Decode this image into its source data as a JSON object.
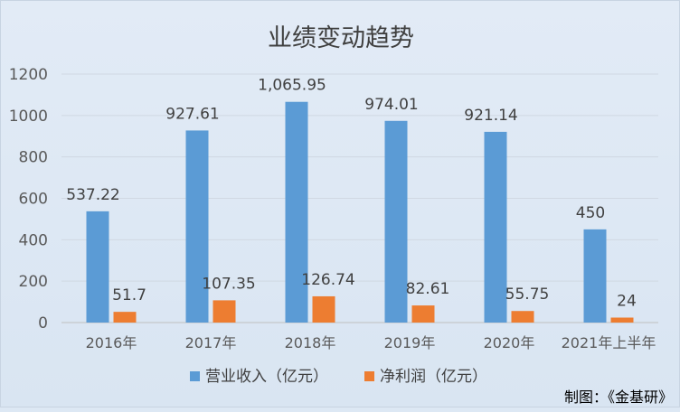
{
  "chart_data": {
    "type": "bar",
    "title": "业绩变动趋势",
    "categories": [
      "2016年",
      "2017年",
      "2018年",
      "2019年",
      "2020年",
      "2021年上半年"
    ],
    "series": [
      {
        "name": "营业收入（亿元）",
        "color": "#5b9bd5",
        "values": [
          537.22,
          927.61,
          1065.95,
          974.01,
          921.14,
          450
        ]
      },
      {
        "name": "净利润（亿元）",
        "color": "#ed7d31",
        "values": [
          51.7,
          107.35,
          126.74,
          82.61,
          55.75,
          24
        ]
      }
    ],
    "value_labels": [
      [
        "537.22",
        "927.61",
        "1,065.95",
        "974.01",
        "921.14",
        "450"
      ],
      [
        "51.7",
        "107.35",
        "126.74",
        "82.61",
        "55.75",
        "24"
      ]
    ],
    "ylim": [
      0,
      1200
    ],
    "yticks": [
      0,
      200,
      400,
      600,
      800,
      1000,
      1200
    ],
    "grid": true,
    "legend": "bottom",
    "source_note": "制图：《金基研》"
  }
}
